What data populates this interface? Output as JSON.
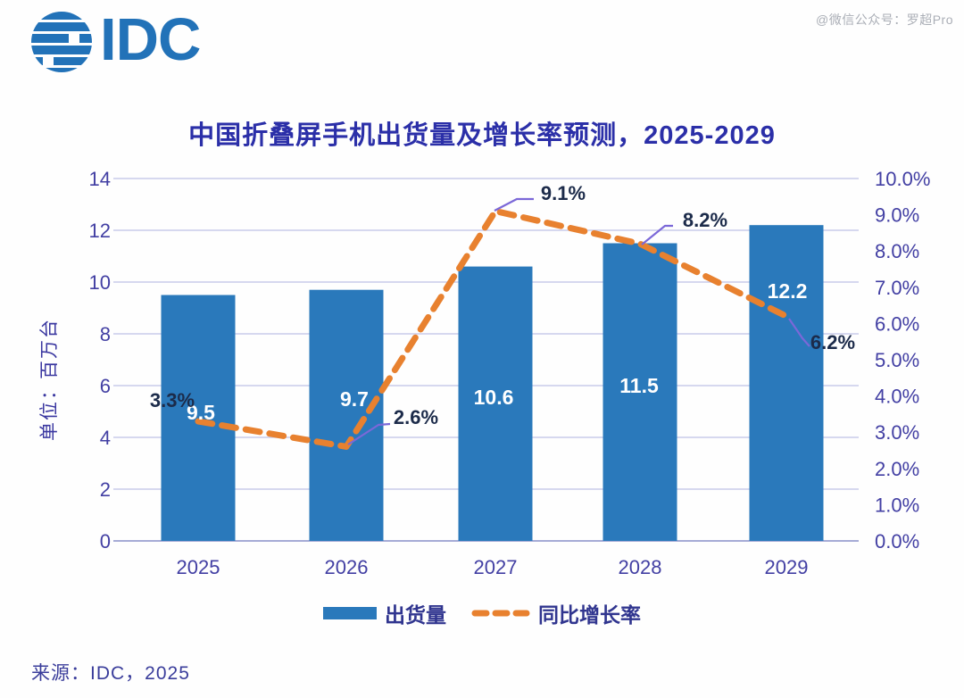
{
  "logo": {
    "text": "IDC",
    "color": "#2272B8",
    "icon": "idc-globe-icon"
  },
  "watermark": {
    "text": "@微信公众号：罗超Pro"
  },
  "title": {
    "text": "中国折叠屏手机出货量及增长率预测，2025-2029"
  },
  "chart_data": {
    "type": "combo",
    "categories": [
      "2025",
      "2026",
      "2027",
      "2028",
      "2029"
    ],
    "series": [
      {
        "name": "出货量",
        "type": "bar",
        "axis": "left",
        "color": "#2A79BB",
        "values": [
          9.5,
          9.7,
          10.6,
          11.5,
          12.2
        ],
        "labels": [
          "9.5",
          "9.7",
          "10.6",
          "11.5",
          "12.2"
        ],
        "label_color": "#ffffff"
      },
      {
        "name": "同比增长率",
        "type": "line",
        "style": "dashed",
        "axis": "right",
        "color": "#E8812F",
        "values": [
          3.3,
          2.6,
          9.1,
          8.2,
          6.2
        ],
        "labels": [
          "3.3%",
          "2.6%",
          "9.1%",
          "8.2%",
          "6.2%"
        ],
        "label_color": "#1C2B4A",
        "leader_color": "#7B68D8"
      }
    ],
    "left_axis": {
      "title": "单位：百万台",
      "min": 0,
      "max": 14,
      "tick_interval": 2,
      "ticks": [
        "0",
        "2",
        "4",
        "6",
        "8",
        "10",
        "12",
        "14"
      ]
    },
    "right_axis": {
      "min": 0,
      "max": 10,
      "tick_interval": 1,
      "ticks": [
        "0.0%",
        "1.0%",
        "2.0%",
        "3.0%",
        "4.0%",
        "5.0%",
        "6.0%",
        "7.0%",
        "8.0%",
        "9.0%",
        "10.0%"
      ]
    },
    "grid": {
      "horizontal": true,
      "vertical": false,
      "color": "#C9CCEA",
      "baseline_color": "#A6ABD6"
    },
    "tick_label_color": "#423FA3"
  },
  "legend": {
    "items": [
      {
        "label": "出货量",
        "swatch": "bar",
        "color": "#2A79BB"
      },
      {
        "label": "同比增长率",
        "swatch": "dashed-line",
        "color": "#E8812F"
      }
    ]
  },
  "source": {
    "text": "来源：IDC，2025"
  }
}
